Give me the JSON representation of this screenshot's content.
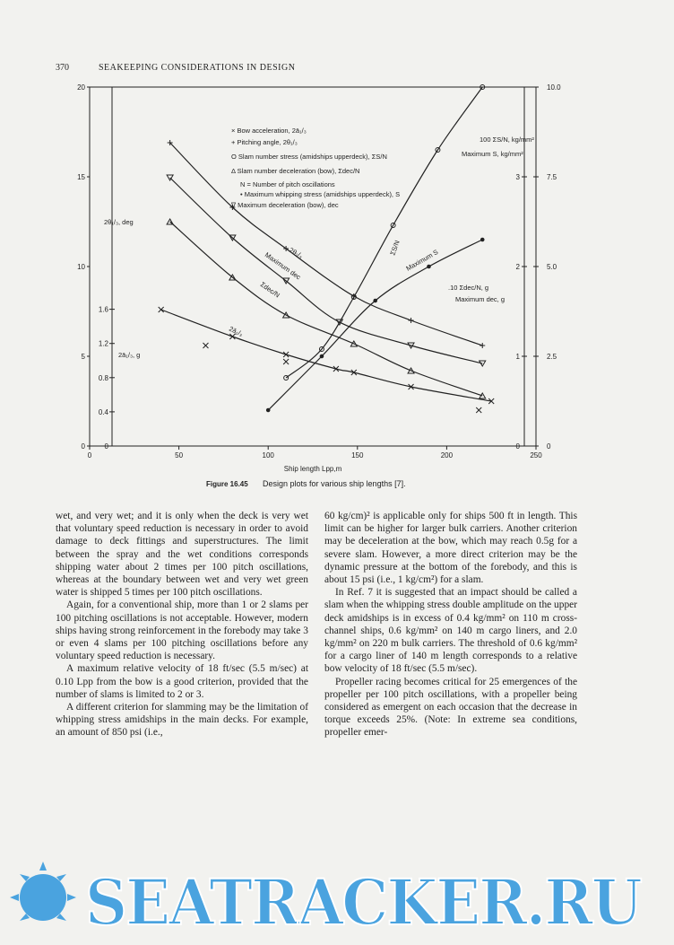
{
  "header": {
    "page_number": "370",
    "running_title": "SEAKEEPING CONSIDERATIONS IN DESIGN"
  },
  "chart_data": {
    "type": "line",
    "xlabel": "Ship length Lpp,m",
    "xlim": [
      0,
      250
    ],
    "xticks": [
      0,
      50,
      100,
      150,
      200,
      250
    ],
    "ylim": [
      0,
      20
    ],
    "yticks": [
      0,
      5,
      10,
      15,
      20
    ],
    "y2lim": [
      0,
      10
    ],
    "y2ticks": [
      {
        "value": 10,
        "label": "10.0"
      },
      7.5,
      {
        "value": 5,
        "label": "5.0"
      },
      2.5,
      0
    ],
    "y3lim": [
      0,
      4
    ],
    "y3ticks": [
      0,
      1,
      2,
      3
    ],
    "y4lim": [
      0,
      4.2
    ],
    "y4ticks": [
      0,
      0.4,
      0.8,
      1.2,
      1.6
    ],
    "legend": [
      "× Bow acceleration, 2ā₁/₃",
      "+ Pitching angle, 2θ₁/₃",
      "O Slam number stress (amidships upperdeck), ΣS/N",
      "Δ Slam number deceleration (bow), Σdec/N",
      "N = Number of pitch oscillations",
      "• Maximum whipping stress (amidships upperdeck), S",
      "∇ Maximum deceleration (bow), dec"
    ],
    "series": [
      {
        "marker": "plus",
        "x": [
          45,
          80,
          110,
          148,
          180,
          220
        ],
        "values": [
          16.9,
          13.3,
          11.0,
          8.35,
          7.0,
          5.6
        ]
      },
      {
        "marker": "tri-down",
        "x": [
          45,
          80,
          110,
          140,
          180,
          220
        ],
        "values": [
          14.95,
          11.6,
          9.2,
          6.9,
          5.6,
          4.6
        ]
      },
      {
        "marker": "tri-up",
        "x": [
          45,
          80,
          110,
          148,
          180,
          220
        ],
        "values": [
          12.5,
          9.4,
          7.3,
          5.7,
          4.2,
          2.8
        ]
      },
      {
        "marker": "cross",
        "x": [
          40,
          80,
          110,
          138,
          148,
          180,
          225
        ],
        "values": [
          7.6,
          6.1,
          5.1,
          4.3,
          4.1,
          3.3,
          2.5
        ]
      },
      {
        "marker": "dot",
        "x": [
          100,
          130,
          160,
          190,
          220
        ],
        "values": [
          2.0,
          5.0,
          8.1,
          10.0,
          11.5
        ]
      },
      {
        "marker": "circle",
        "x": [
          110,
          130,
          148,
          170,
          195,
          220
        ],
        "values": [
          3.8,
          5.4,
          8.3,
          12.3,
          16.5,
          20
        ]
      }
    ],
    "scatter": {
      "marker": "cross",
      "x": [
        65,
        110,
        218
      ],
      "values": [
        5.6,
        4.7,
        2.0
      ]
    },
    "annotations": [
      "2θ₁/₃, deg",
      "2ā₁/₃, g",
      "2θ₁/₃",
      "Maximum dec",
      "Σdec/N",
      "2ā₁/₃",
      "ΣS/N",
      "Maximum S",
      "100 ΣS/N, kg/mm²",
      "Maximum S, kg/mm²",
      ".10 Σdec/N, g",
      "Maximum dec, g"
    ]
  },
  "caption": {
    "number": "Figure 16.45",
    "text": "Design plots for various ship lengths [7]."
  },
  "body": {
    "left": [
      "wet, and very wet; and it is only when the deck is very wet that voluntary speed reduction is necessary in order to avoid damage to deck fittings and superstructures. The limit between the spray and the wet conditions corresponds shipping water about 2 times per 100 pitch oscillations, whereas at the boundary between wet and very wet green water is shipped 5 times per 100 pitch oscillations.",
      "Again, for a conventional ship, more than 1 or 2 slams per 100 pitching oscillations is not acceptable. However, modern ships having strong reinforcement in the forebody may take 3 or even 4 slams per 100 pitching oscillations before any voluntary speed reduction is necessary.",
      "A maximum relative velocity of 18 ft/sec (5.5 m/sec) at 0.10 Lpp from the bow is a good criterion, provided that the number of slams is limited to 2 or 3.",
      "A different criterion for slamming may be the limitation of whipping stress amidships in the main decks. For example, an amount of 850 psi (i.e.,"
    ],
    "right": [
      "60 kg/cm)² is applicable only for ships 500 ft in length. This limit can be higher for larger bulk carriers. Another criterion may be deceleration at the bow, which may reach 0.5g for a severe slam. However, a more direct criterion may be the dynamic pressure at the bottom of the forebody, and this is about 15 psi (i.e., 1 kg/cm²) for a slam.",
      "In Ref. 7 it is suggested that an impact should be called a slam when the whipping stress double amplitude on the upper deck amidships is in excess of 0.4 kg/mm² on 110 m cross-channel ships, 0.6 kg/mm² on 140 m cargo liners, and 2.0 kg/mm² on 220 m bulk carriers. The threshold of 0.6 kg/mm² for a cargo liner of 140 m length corresponds to a relative bow velocity of 18 ft/sec (5.5 m/sec).",
      "Propeller racing becomes critical for 25 emergences of the propeller per 100 pitch oscillations, with a propeller being considered as emergent on each occasion that the decrease in torque exceeds 25%. (Note: In extreme sea conditions, propeller emer-"
    ]
  },
  "watermark": "SEATRACKER.RU"
}
